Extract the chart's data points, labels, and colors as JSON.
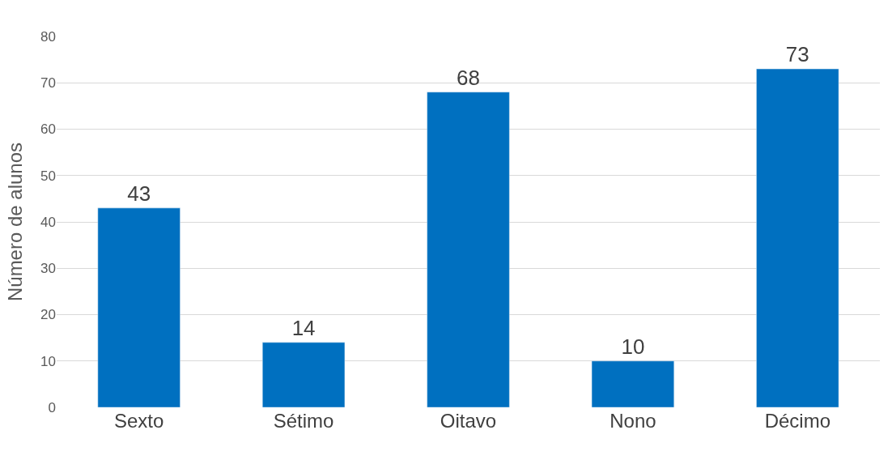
{
  "chart_data": {
    "type": "bar",
    "ylabel": "Número de alunos",
    "categories": [
      "Sexto",
      "Sétimo",
      "Oitavo",
      "Nono",
      "Décimo"
    ],
    "values": [
      43,
      14,
      68,
      10,
      73
    ],
    "color": "#0070c0",
    "ylim": [
      0,
      80
    ],
    "yticks": [
      0,
      10,
      20,
      30,
      40,
      50,
      60,
      70,
      80
    ],
    "grid": "y",
    "data_labels": true,
    "legend": false
  }
}
